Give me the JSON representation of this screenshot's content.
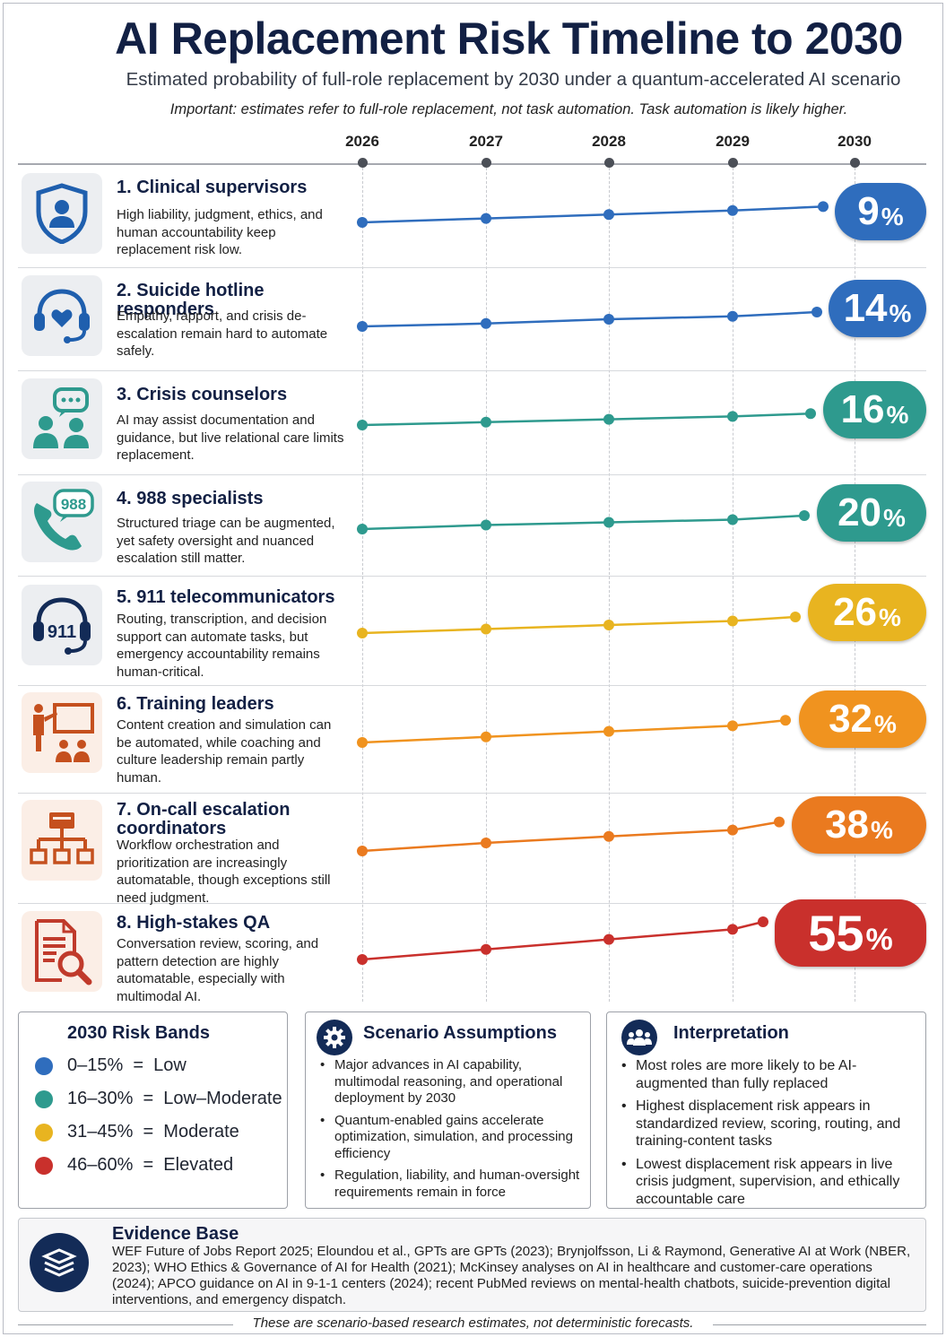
{
  "title": "AI Replacement Risk Timeline to 2030",
  "subtitle": "Estimated probability of full-role replacement by 2030 under a quantum-accelerated AI scenario",
  "note": "Important: estimates refer to full-role replacement, not task automation. Task automation is likely higher.",
  "chart_data": {
    "type": "line",
    "x": [
      "2026",
      "2027",
      "2028",
      "2029",
      "2030"
    ],
    "y_unit": "%",
    "series": [
      {
        "name": "1. Clinical supervisors",
        "values": [
          5,
          6,
          7,
          8,
          9
        ],
        "color": "#2f6dbd",
        "label": "9"
      },
      {
        "name": "2. Suicide hotline responders",
        "values": [
          9,
          10,
          11.5,
          12.5,
          14
        ],
        "color": "#2f6dbd",
        "label": "14"
      },
      {
        "name": "3. Crisis counselors",
        "values": [
          12,
          13,
          14,
          15,
          16
        ],
        "color": "#2e9a8e",
        "label": "16"
      },
      {
        "name": "4. 988 specialists",
        "values": [
          15,
          16.5,
          17.5,
          18.5,
          20
        ],
        "color": "#2e9a8e",
        "label": "20"
      },
      {
        "name": "5. 911 telecommunicators",
        "values": [
          20,
          21.5,
          23,
          24.5,
          26
        ],
        "color": "#e8b420",
        "label": "26"
      },
      {
        "name": "6. Training leaders",
        "values": [
          24,
          26,
          28,
          30,
          32
        ],
        "color": "#f0931f",
        "label": "32"
      },
      {
        "name": "7. On-call escalation coordinators",
        "values": [
          29,
          31.5,
          33.5,
          35.5,
          38
        ],
        "color": "#ea7a1f",
        "label": "38"
      },
      {
        "name": "8. High-stakes QA",
        "values": [
          40,
          44,
          48,
          52,
          55
        ],
        "color": "#c9302c",
        "label": "55"
      }
    ]
  },
  "roles": [
    {
      "name": "1. Clinical supervisors",
      "desc": "High liability, judgment, ethics, and human accountability keep replacement risk low.",
      "icon": "shield-person-icon"
    },
    {
      "name": "2. Suicide hotline responders",
      "desc": "Empathy, rapport, and crisis de-escalation remain hard to automate safely.",
      "icon": "headset-heart-icon"
    },
    {
      "name": "3. Crisis counselors",
      "desc": "AI may assist documentation and guidance, but live relational care limits replacement.",
      "icon": "people-chat-icon"
    },
    {
      "name": "4. 988 specialists",
      "desc": "Structured triage can be augmented, yet safety oversight and nuanced escalation still matter.",
      "icon": "phone-988-icon"
    },
    {
      "name": "5. 911 telecommunicators",
      "desc": "Routing, transcription, and decision support can automate tasks, but emergency accountability remains human-critical.",
      "icon": "headset-911-icon"
    },
    {
      "name": "6. Training leaders",
      "desc": "Content creation and simulation can be automated, while coaching and culture leadership remain partly human.",
      "icon": "presenter-icon"
    },
    {
      "name": "7. On-call escalation coordinators",
      "desc": "Workflow orchestration and prioritization are increasingly automatable, though exceptions still need judgment.",
      "icon": "org-chart-icon"
    },
    {
      "name": "8. High-stakes QA",
      "desc": "Conversation review, scoring, and pattern detection are highly automatable, especially with multimodal AI.",
      "icon": "document-search-icon"
    }
  ],
  "bands": {
    "title": "2030 Risk Bands",
    "items": [
      {
        "label": "0–15%  =  Low",
        "color": "#2f6dbd"
      },
      {
        "label": "16–30%  =  Low–Moderate",
        "color": "#2e9a8e"
      },
      {
        "label": "31–45%  =  Moderate",
        "color": "#e8b420"
      },
      {
        "label": "46–60%  =  Elevated",
        "color": "#c9302c"
      }
    ]
  },
  "assumptions": {
    "title": "Scenario Assumptions",
    "icon": "gear-icon",
    "items": [
      "Major advances in AI capability, multimodal reasoning, and operational deployment by 2030",
      "Quantum-enabled gains accelerate optimization, simulation, and processing efficiency",
      "Regulation, liability, and human-oversight requirements remain in force"
    ]
  },
  "interpretation": {
    "title": "Interpretation",
    "icon": "people-group-icon",
    "items": [
      "Most roles are more likely to be AI-augmented than fully replaced",
      "Highest displacement risk appears in standardized review, scoring, routing, and training-content tasks",
      "Lowest displacement risk appears in live crisis judgment, supervision, and ethically accountable care"
    ]
  },
  "evidence": {
    "title": "Evidence Base",
    "icon": "books-icon",
    "text": "WEF Future of Jobs Report 2025; Eloundou et al., GPTs are GPTs (2023); Brynjolfsson, Li & Raymond, Generative AI at Work (NBER, 2023); WHO Ethics & Governance of AI for Health (2021); McKinsey analyses on AI in healthcare and customer-care operations (2024); APCO guidance on AI in 9-1-1 centers (2024); recent PubMed reviews on mental-health chatbots, suicide-prevention digital interventions, and emergency dispatch."
  },
  "footer": "These are scenario-based research estimates, not deterministic forecasts."
}
